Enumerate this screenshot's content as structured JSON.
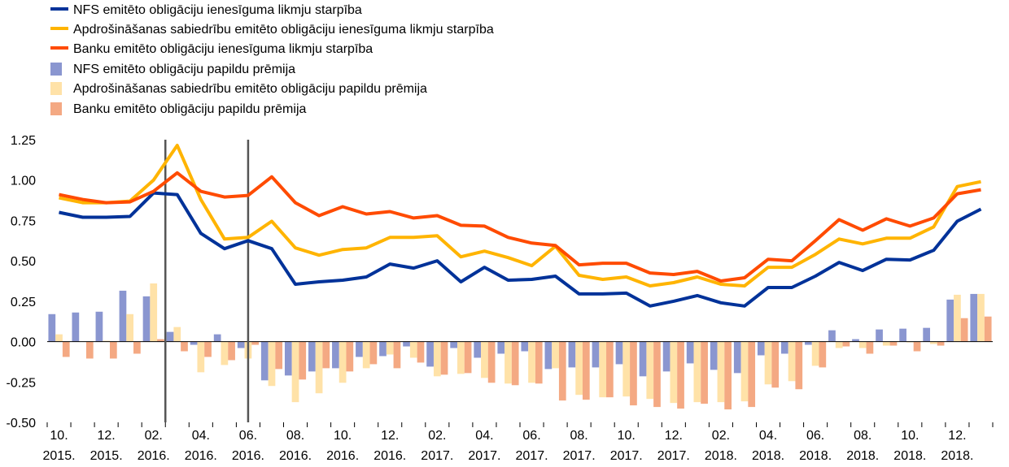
{
  "chart_data": {
    "type": "bar+line",
    "title": "",
    "xlabel": "",
    "ylabel": "",
    "ylim": [
      -0.5,
      1.25
    ],
    "yticks": [
      -0.5,
      -0.25,
      0.0,
      0.25,
      0.5,
      0.75,
      1.0,
      1.25
    ],
    "ytick_labels": [
      "-0.50",
      "-0.25",
      "0.00",
      "0.25",
      "0.50",
      "0.75",
      "1.00",
      "1.25"
    ],
    "grid": false,
    "legend_position": "top-left",
    "x_tick_labels": [
      [
        "10.",
        "2015."
      ],
      [
        "12.",
        "2015."
      ],
      [
        "02.",
        "2016."
      ],
      [
        "04.",
        "2016."
      ],
      [
        "06.",
        "2016."
      ],
      [
        "08.",
        "2016."
      ],
      [
        "10.",
        "2016."
      ],
      [
        "12.",
        "2016."
      ],
      [
        "02.",
        "2017."
      ],
      [
        "04.",
        "2017."
      ],
      [
        "06.",
        "2017."
      ],
      [
        "08.",
        "2017."
      ],
      [
        "10.",
        "2017."
      ],
      [
        "12.",
        "2017."
      ],
      [
        "02.",
        "2018."
      ],
      [
        "04.",
        "2018."
      ],
      [
        "06.",
        "2018."
      ],
      [
        "08.",
        "2018."
      ],
      [
        "10.",
        "2018."
      ],
      [
        "12.",
        "2018."
      ]
    ],
    "vertical_markers_at_period": [
      5,
      8.5
    ],
    "lines": [
      {
        "name": "NFS emitēto obligāciju ienesīguma likmju starpība",
        "color": "#003299",
        "values": [
          0.8,
          0.77,
          0.77,
          0.775,
          0.92,
          0.91,
          0.67,
          0.575,
          0.625,
          0.575,
          0.355,
          0.37,
          0.38,
          0.4,
          0.48,
          0.455,
          0.5,
          0.37,
          0.46,
          0.38,
          0.385,
          0.405,
          0.295,
          0.295,
          0.3,
          0.22,
          0.25,
          0.285,
          0.24,
          0.22,
          0.335,
          0.335,
          0.405,
          0.49,
          0.44,
          0.51,
          0.505,
          0.565,
          0.745,
          0.82
        ]
      },
      {
        "name": "Apdrošināšanas sabiedrību emitēto obligāciju ienesīguma likmju starpība",
        "color": "#FFB400",
        "values": [
          0.89,
          0.86,
          0.86,
          0.87,
          1.0,
          1.215,
          0.88,
          0.635,
          0.645,
          0.745,
          0.58,
          0.535,
          0.57,
          0.58,
          0.645,
          0.645,
          0.655,
          0.525,
          0.56,
          0.52,
          0.47,
          0.59,
          0.41,
          0.385,
          0.4,
          0.345,
          0.365,
          0.4,
          0.355,
          0.345,
          0.46,
          0.46,
          0.54,
          0.635,
          0.605,
          0.64,
          0.64,
          0.71,
          0.96,
          0.99
        ]
      },
      {
        "name": "Banku emitēto obligāciju ienesīguma likmju starpība",
        "color": "#FF4B00",
        "values": [
          0.91,
          0.88,
          0.86,
          0.865,
          0.93,
          1.045,
          0.93,
          0.895,
          0.905,
          1.02,
          0.86,
          0.78,
          0.835,
          0.79,
          0.805,
          0.765,
          0.78,
          0.72,
          0.715,
          0.645,
          0.61,
          0.595,
          0.475,
          0.485,
          0.485,
          0.425,
          0.415,
          0.435,
          0.375,
          0.395,
          0.51,
          0.5,
          0.625,
          0.755,
          0.69,
          0.76,
          0.715,
          0.765,
          0.915,
          0.94
        ]
      }
    ],
    "bars": [
      {
        "name": "NFS emitēto obligāciju papildu prēmija",
        "color": "#8A96D0",
        "values": [
          0.17,
          0.18,
          0.185,
          0.315,
          0.28,
          0.06,
          -0.02,
          0.045,
          -0.04,
          -0.24,
          -0.21,
          -0.185,
          -0.165,
          -0.095,
          -0.09,
          -0.03,
          -0.155,
          -0.04,
          -0.1,
          -0.075,
          -0.06,
          -0.17,
          -0.16,
          -0.16,
          -0.14,
          -0.215,
          -0.185,
          -0.135,
          -0.175,
          -0.195,
          -0.085,
          -0.075,
          -0.02,
          0.07,
          0.015,
          0.075,
          0.08,
          0.085,
          0.26,
          0.295
        ]
      },
      {
        "name": "Apdrošināšanas sabiedrību emitēto obligāciju papildu prēmija",
        "color": "#FFE2A8",
        "values": [
          0.045,
          0.0,
          0.005,
          0.17,
          0.36,
          0.09,
          -0.19,
          -0.145,
          -0.105,
          -0.275,
          -0.375,
          -0.32,
          -0.255,
          -0.165,
          -0.08,
          -0.1,
          -0.215,
          -0.2,
          -0.225,
          -0.26,
          -0.255,
          -0.165,
          -0.33,
          -0.345,
          -0.34,
          -0.355,
          -0.38,
          -0.375,
          -0.375,
          -0.37,
          -0.265,
          -0.245,
          -0.15,
          -0.04,
          -0.04,
          -0.025,
          -0.005,
          -0.015,
          0.29,
          0.295
        ]
      },
      {
        "name": "Banku emitēto obligāciju papildu prēmija",
        "color": "#F4A983",
        "values": [
          -0.095,
          -0.105,
          -0.105,
          -0.075,
          0.015,
          -0.06,
          -0.095,
          -0.115,
          -0.02,
          -0.17,
          -0.235,
          -0.165,
          -0.185,
          -0.14,
          -0.165,
          -0.13,
          -0.205,
          -0.195,
          -0.255,
          -0.27,
          -0.26,
          -0.365,
          -0.36,
          -0.345,
          -0.395,
          -0.405,
          -0.415,
          -0.385,
          -0.42,
          -0.405,
          -0.285,
          -0.295,
          -0.16,
          -0.03,
          -0.075,
          -0.025,
          -0.06,
          -0.025,
          0.145,
          0.155
        ]
      }
    ]
  }
}
